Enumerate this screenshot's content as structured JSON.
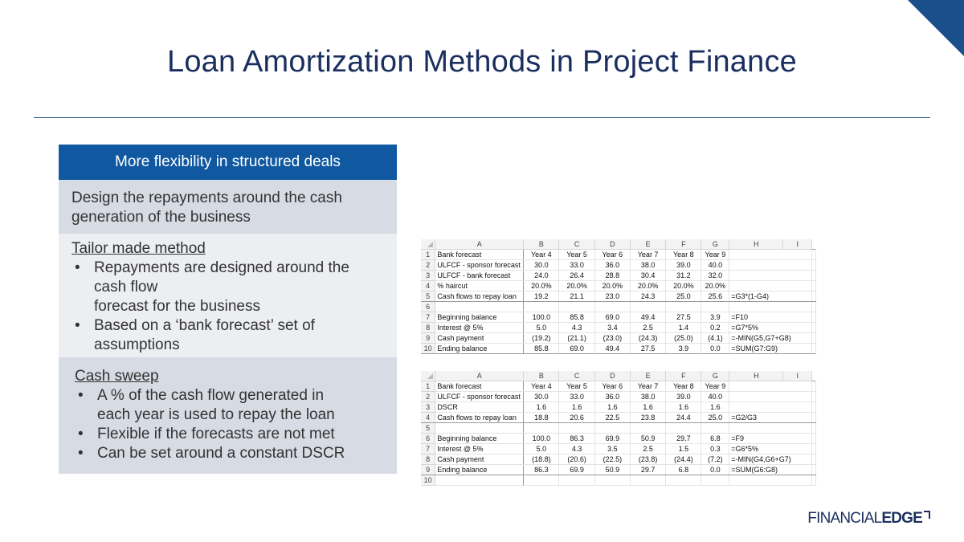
{
  "slide": {
    "title": "Loan Amortization Methods in Project Finance",
    "page_number": "",
    "colors": {
      "title": "#1b2f5f",
      "panel_header": "#1059a1",
      "accent": "#2d5b86"
    }
  },
  "panel": {
    "header": "More flexibility in structured deals",
    "intro_line1": "Design the repayments around the cash",
    "intro_line2": "generation of the business",
    "tailor": {
      "heading": "Tailor made method",
      "b1_line1": "Repayments are designed around the",
      "b1_line2": "cash flow",
      "b1_line3": "forecast for the business",
      "b2_line1": "Based on a ‘bank forecast’ set of",
      "b2_line2": "assumptions"
    },
    "sweep": {
      "heading": "Cash sweep",
      "b1_line1": "A % of the cash flow generated in",
      "b1_line2": "each year is used to repay the loan",
      "b2": "Flexible if the forecasts are not met",
      "b3": "Can be set around a constant DSCR"
    },
    "bullet_char": "•"
  },
  "sheets": [
    {
      "columns": [
        "A",
        "B",
        "C",
        "D",
        "E",
        "F",
        "G",
        "H",
        "I"
      ],
      "rows": [
        {
          "n": "1",
          "label": "Bank forecast",
          "v": [
            "Year 4",
            "Year 5",
            "Year 6",
            "Year 7",
            "Year 8",
            "Year 9"
          ],
          "formula": ""
        },
        {
          "n": "2",
          "label": "ULFCF - sponsor forecast",
          "v": [
            "30.0",
            "33.0",
            "36.0",
            "38.0",
            "39.0",
            "40.0"
          ],
          "formula": ""
        },
        {
          "n": "3",
          "label": "ULFCF - bank forecast",
          "v": [
            "24.0",
            "26.4",
            "28.8",
            "30.4",
            "31.2",
            "32.0"
          ],
          "formula": ""
        },
        {
          "n": "4",
          "label": "% haircut",
          "v": [
            "20.0%",
            "20.0%",
            "20.0%",
            "20.0%",
            "20.0%",
            "20.0%"
          ],
          "formula": ""
        },
        {
          "n": "5",
          "label": "Cash flows to repay loan",
          "v": [
            "19.2",
            "21.1",
            "23.0",
            "24.3",
            "25.0",
            "25.6"
          ],
          "formula": "=G3*(1-G4)"
        },
        {
          "n": "6",
          "label": "",
          "v": [
            "",
            "",
            "",
            "",
            "",
            ""
          ],
          "formula": ""
        },
        {
          "n": "7",
          "label": "Beginning balance",
          "v": [
            "100.0",
            "85.8",
            "69.0",
            "49.4",
            "27.5",
            "3.9"
          ],
          "formula": "=F10"
        },
        {
          "n": "8",
          "label": "Interest @ 5%",
          "v": [
            "5.0",
            "4.3",
            "3.4",
            "2.5",
            "1.4",
            "0.2"
          ],
          "formula": "=G7*5%"
        },
        {
          "n": "9",
          "label": "Cash payment",
          "v": [
            "(19.2)",
            "(21.1)",
            "(23.0)",
            "(24.3)",
            "(25.0)",
            "(4.1)"
          ],
          "formula": "=-MIN(G5,G7+G8)"
        },
        {
          "n": "10",
          "label": "Ending balance",
          "v": [
            "85.8",
            "69.0",
            "49.4",
            "27.5",
            "3.9",
            "0.0"
          ],
          "formula": "=SUM(G7:G9)"
        }
      ]
    },
    {
      "columns": [
        "A",
        "B",
        "C",
        "D",
        "E",
        "F",
        "G",
        "H",
        "I"
      ],
      "rows": [
        {
          "n": "1",
          "label": "Bank forecast",
          "v": [
            "Year 4",
            "Year 5",
            "Year 6",
            "Year 7",
            "Year 8",
            "Year 9"
          ],
          "formula": ""
        },
        {
          "n": "2",
          "label": "ULFCF - sponsor forecast",
          "v": [
            "30.0",
            "33.0",
            "36.0",
            "38.0",
            "39.0",
            "40.0"
          ],
          "formula": ""
        },
        {
          "n": "3",
          "label": "DSCR",
          "v": [
            "1.6",
            "1.6",
            "1.6",
            "1.6",
            "1.6",
            "1.6"
          ],
          "formula": ""
        },
        {
          "n": "4",
          "label": "Cash flows to repay loan",
          "v": [
            "18.8",
            "20.6",
            "22.5",
            "23.8",
            "24.4",
            "25.0"
          ],
          "formula": "=G2/G3"
        },
        {
          "n": "5",
          "label": "",
          "v": [
            "",
            "",
            "",
            "",
            "",
            ""
          ],
          "formula": ""
        },
        {
          "n": "6",
          "label": "Beginning balance",
          "v": [
            "100.0",
            "86.3",
            "69.9",
            "50.9",
            "29.7",
            "6.8"
          ],
          "formula": "=F9"
        },
        {
          "n": "7",
          "label": "Interest @ 5%",
          "v": [
            "5.0",
            "4.3",
            "3.5",
            "2.5",
            "1.5",
            "0.3"
          ],
          "formula": "=G6*5%"
        },
        {
          "n": "8",
          "label": "Cash payment",
          "v": [
            "(18.8)",
            "(20.6)",
            "(22.5)",
            "(23.8)",
            "(24.4)",
            "(7.2)"
          ],
          "formula": "=-MIN(G4,G6+G7)"
        },
        {
          "n": "9",
          "label": "Ending balance",
          "v": [
            "86.3",
            "69.9",
            "50.9",
            "29.7",
            "6.8",
            "0.0"
          ],
          "formula": "=SUM(G6:G8)"
        },
        {
          "n": "10",
          "label": "",
          "v": [
            "",
            "",
            "",
            "",
            "",
            ""
          ],
          "formula": ""
        }
      ]
    }
  ],
  "brand": {
    "part1": "FINANCIAL",
    "part2": "EDGE",
    "icon": "corner-bracket-icon"
  }
}
